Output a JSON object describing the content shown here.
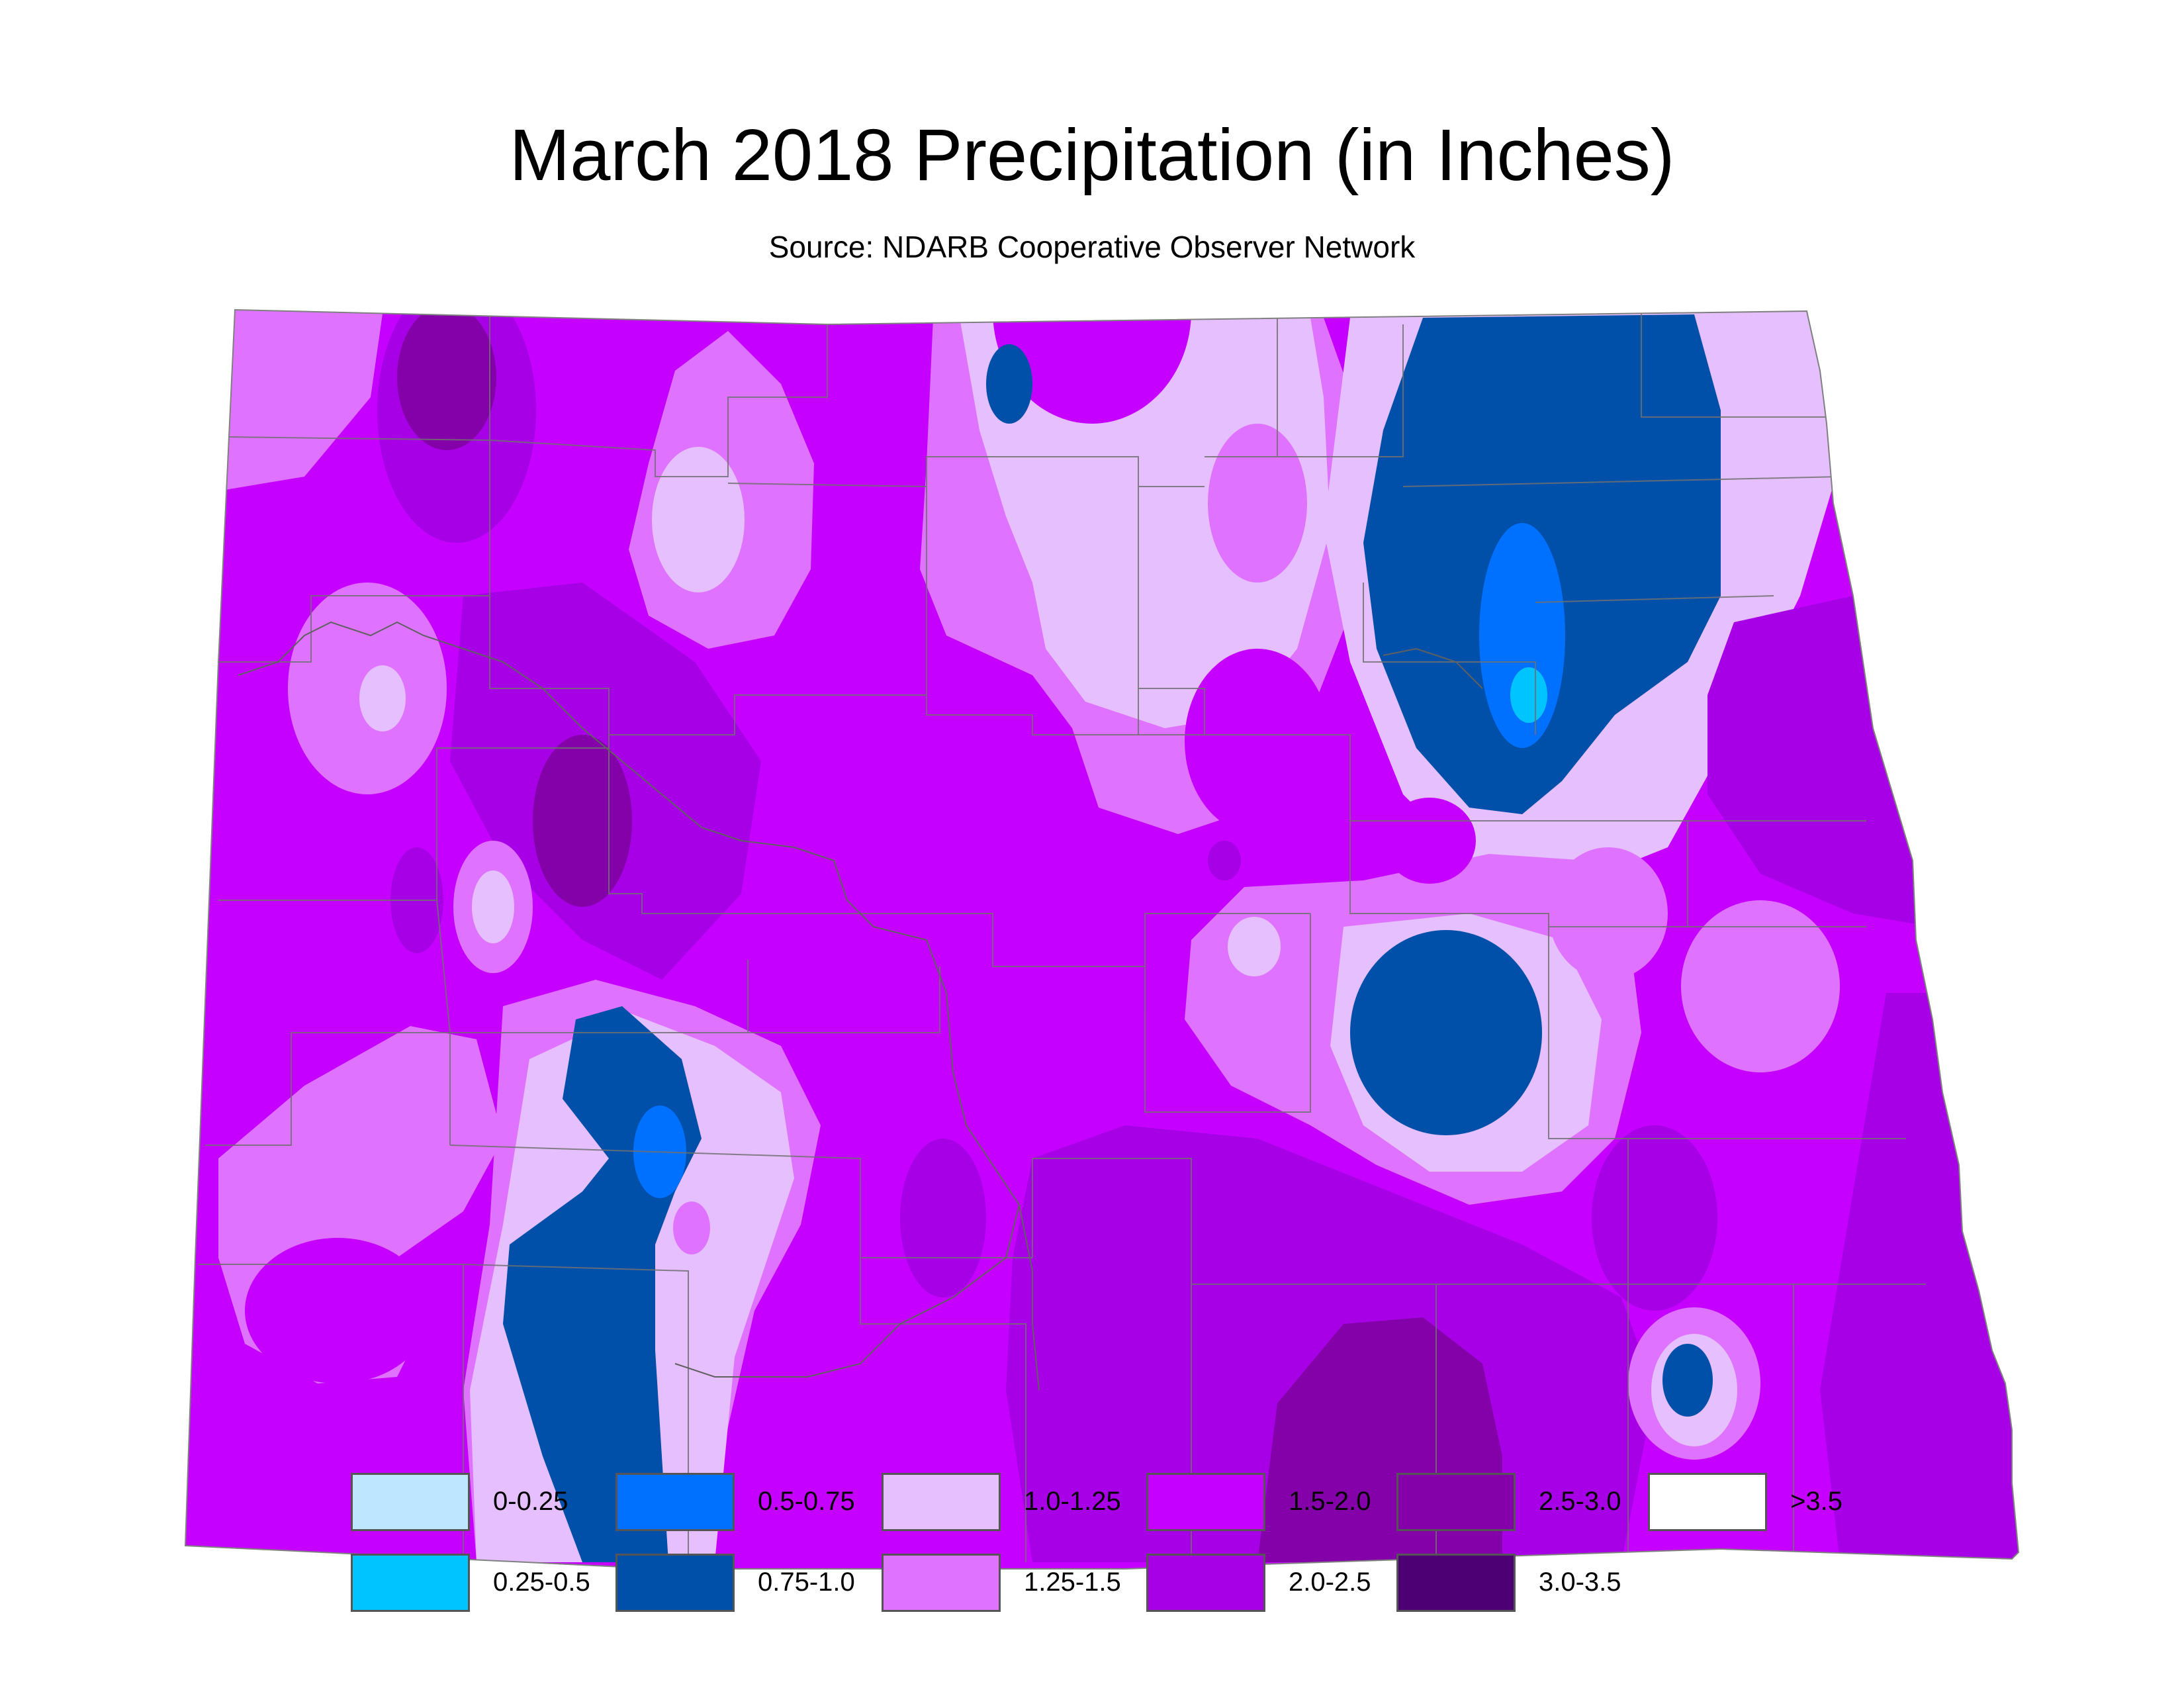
{
  "title": "March 2018 Precipitation (in Inches)",
  "subtitle": "Source: NDARB Cooperative Observer Network",
  "legend": [
    {
      "label": "0-0.25",
      "color": "#bfe6ff"
    },
    {
      "label": "0.25-0.5",
      "color": "#00c4ff"
    },
    {
      "label": "0.5-0.75",
      "color": "#0070ff"
    },
    {
      "label": "0.75-1.0",
      "color": "#0050aa"
    },
    {
      "label": "1.0-1.25",
      "color": "#e6bfff"
    },
    {
      "label": "1.25-1.5",
      "color": "#df73ff"
    },
    {
      "label": "1.5-2.0",
      "color": "#c500ff"
    },
    {
      "label": "2.0-2.5",
      "color": "#a800e6"
    },
    {
      "label": "2.5-3.0",
      "color": "#8400a8"
    },
    {
      "label": "3.0-3.5",
      "color": "#4c0073"
    },
    {
      "label": ">3.5",
      "color": "#ffffff"
    }
  ]
}
